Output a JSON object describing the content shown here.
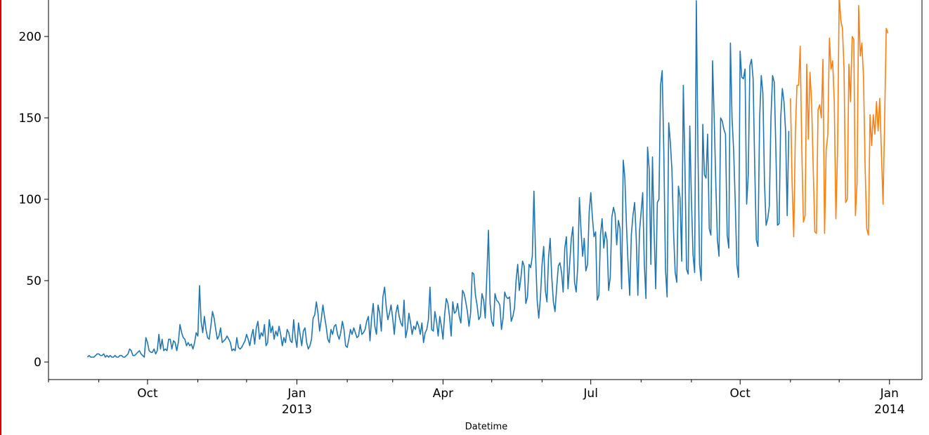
{
  "chart_data": {
    "type": "line",
    "title": "",
    "xlabel": "Datetime",
    "ylabel": "",
    "xlim": [
      "2012-08-01",
      "2014-01-21"
    ],
    "ylim": [
      -10,
      222
    ],
    "grid": false,
    "y_ticks": [
      0,
      50,
      100,
      150,
      200
    ],
    "x_ticks": [
      {
        "date": "2012-10-01",
        "label": "Oct",
        "sublabel": ""
      },
      {
        "date": "2013-01-01",
        "label": "Jan",
        "sublabel": "2013"
      },
      {
        "date": "2013-04-01",
        "label": "Apr",
        "sublabel": ""
      },
      {
        "date": "2013-07-01",
        "label": "Jul",
        "sublabel": ""
      },
      {
        "date": "2013-10-01",
        "label": "Oct",
        "sublabel": ""
      },
      {
        "date": "2014-01-01",
        "label": "Jan",
        "sublabel": "2014"
      }
    ],
    "x_minor_ticks": [
      "2012-08-01",
      "2012-09-01",
      "2012-11-01",
      "2012-12-01",
      "2013-02-01",
      "2013-03-01",
      "2013-05-01",
      "2013-06-01",
      "2013-08-01",
      "2013-09-01",
      "2013-11-01",
      "2013-12-01"
    ],
    "frequency": "daily",
    "series": [
      {
        "color": "#1f77b4",
        "x_start": "2012-08-25",
        "values": [
          3,
          4,
          3,
          3,
          3,
          4,
          5,
          5,
          4,
          4,
          5,
          3,
          4,
          3,
          4,
          3,
          3,
          4,
          3,
          3,
          4,
          4,
          3,
          3,
          4,
          5,
          8,
          7,
          4,
          4,
          5,
          6,
          7,
          5,
          4,
          3,
          15,
          12,
          7,
          6,
          6,
          8,
          5,
          7,
          17,
          8,
          14,
          7,
          8,
          7,
          14,
          14,
          8,
          13,
          12,
          7,
          12,
          23,
          18,
          15,
          14,
          10,
          12,
          10,
          11,
          8,
          12,
          18,
          16,
          47,
          25,
          18,
          28,
          20,
          15,
          14,
          22,
          31,
          27,
          20,
          14,
          16,
          21,
          12,
          13,
          14,
          16,
          14,
          12,
          7,
          8,
          7,
          15,
          9,
          8,
          9,
          11,
          13,
          17,
          14,
          10,
          16,
          20,
          11,
          21,
          25,
          14,
          18,
          16,
          23,
          10,
          12,
          26,
          18,
          22,
          14,
          19,
          16,
          22,
          17,
          10,
          15,
          12,
          20,
          18,
          13,
          12,
          26,
          15,
          9,
          24,
          17,
          10,
          19,
          21,
          12,
          8,
          10,
          14,
          27,
          29,
          37,
          30,
          19,
          26,
          35,
          28,
          22,
          14,
          12,
          20,
          17,
          22,
          23,
          17,
          14,
          18,
          25,
          20,
          10,
          9,
          14,
          20,
          17,
          21,
          18,
          15,
          16,
          23,
          17,
          18,
          20,
          25,
          28,
          13,
          27,
          36,
          22,
          17,
          35,
          30,
          19,
          40,
          46,
          34,
          26,
          30,
          35,
          27,
          17,
          30,
          35,
          28,
          24,
          22,
          38,
          15,
          20,
          30,
          24,
          17,
          22,
          20,
          25,
          22,
          17,
          24,
          12,
          18,
          20,
          26,
          46,
          20,
          19,
          31,
          25,
          16,
          28,
          22,
          14,
          29,
          39,
          36,
          28,
          16,
          37,
          30,
          31,
          36,
          28,
          24,
          44,
          42,
          37,
          31,
          22,
          30,
          55,
          54,
          41,
          35,
          26,
          28,
          42,
          38,
          27,
          53,
          81,
          36,
          25,
          22,
          42,
          38,
          37,
          35,
          20,
          27,
          43,
          40,
          39,
          40,
          25,
          28,
          33,
          50,
          60,
          44,
          52,
          62,
          59,
          36,
          40,
          60,
          58,
          65,
          105,
          66,
          38,
          27,
          40,
          60,
          71,
          44,
          37,
          64,
          76,
          52,
          37,
          31,
          46,
          59,
          61,
          55,
          43,
          70,
          77,
          45,
          60,
          76,
          83,
          49,
          43,
          59,
          101,
          81,
          65,
          76,
          56,
          60,
          92,
          104,
          89,
          77,
          80,
          38,
          41,
          78,
          88,
          70,
          80,
          75,
          44,
          52,
          89,
          95,
          91,
          72,
          87,
          82,
          45,
          124,
          113,
          84,
          60,
          41,
          78,
          90,
          98,
          76,
          41,
          80,
          92,
          104,
          60,
          39,
          132,
          118,
          60,
          126,
          80,
          45,
          98,
          100,
          170,
          179,
          130,
          57,
          40,
          147,
          135,
          118,
          80,
          55,
          49,
          108,
          101,
          62,
          170,
          120,
          57,
          54,
          145,
          100,
          66,
          55,
          222,
          130,
          60,
          50,
          146,
          115,
          113,
          140,
          82,
          78,
          185,
          150,
          110,
          75,
          65,
          150,
          148,
          143,
          140,
          78,
          70,
          196,
          150,
          130,
          98,
          60,
          52,
          191,
          175,
          174,
          180,
          97,
          115,
          182,
          186,
          174,
          120,
          75,
          71,
          150,
          176,
          165,
          110,
          84,
          88,
          96,
          150,
          176,
          172,
          130,
          84,
          85,
          150,
          168,
          160,
          142,
          90,
          142
        ]
      },
      {
        "color": "#ff7f0e",
        "x_start": "2013-11-01",
        "values": [
          162,
          110,
          77,
          140,
          170,
          170,
          194,
          130,
          86,
          90,
          183,
          137,
          178,
          160,
          120,
          80,
          79,
          155,
          158,
          150,
          186,
          79,
          130,
          140,
          199,
          180,
          185,
          160,
          88,
          130,
          225,
          210,
          205,
          180,
          98,
          100,
          183,
          160,
          200,
          198,
          90,
          110,
          219,
          188,
          196,
          175,
          120,
          82,
          78,
          152,
          133,
          152,
          140,
          160,
          142,
          162,
          130,
          97,
          150,
          205,
          202
        ]
      }
    ]
  }
}
